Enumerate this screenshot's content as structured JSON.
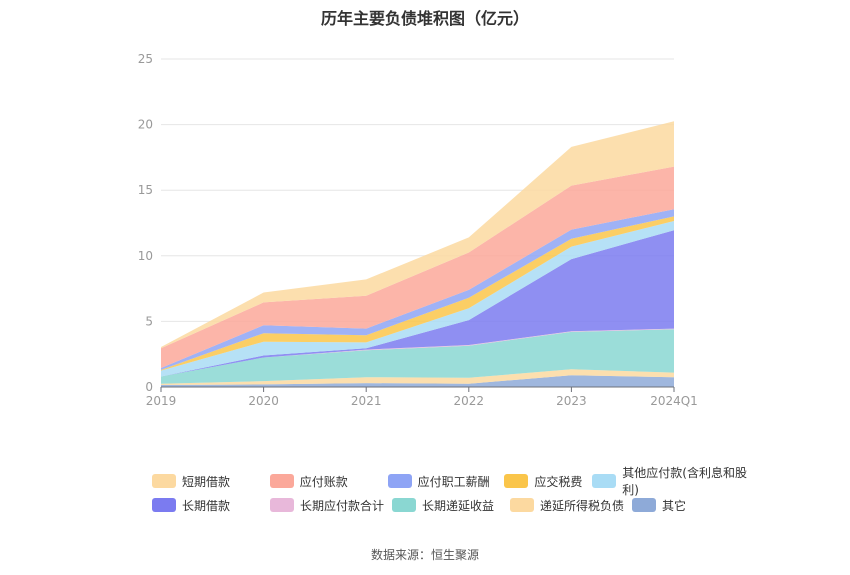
{
  "chart_data": {
    "type": "area",
    "stacked": true,
    "title": "历年主要负债堆积图（亿元）",
    "categories": [
      "2019",
      "2020",
      "2021",
      "2022",
      "2023",
      "2024Q1"
    ],
    "ylim": [
      0,
      25
    ],
    "yticks": [
      0,
      5,
      10,
      15,
      20,
      25
    ],
    "grid": true,
    "legend_position": "bottom",
    "series": [
      {
        "name": "其它",
        "color": "#8eaad8",
        "values": [
          0.15,
          0.2,
          0.3,
          0.25,
          0.9,
          0.75
        ]
      },
      {
        "name": "递延所得税负债",
        "color": "#fcd9a0",
        "values": [
          0.1,
          0.25,
          0.45,
          0.45,
          0.45,
          0.35
        ]
      },
      {
        "name": "长期递延收益",
        "color": "#8ad7d2",
        "values": [
          0.55,
          1.8,
          2.05,
          2.45,
          2.85,
          3.3
        ]
      },
      {
        "name": "长期应付款合计",
        "color": "#e8b8da",
        "values": [
          0.0,
          0.0,
          0.05,
          0.05,
          0.05,
          0.05
        ]
      },
      {
        "name": "长期借款",
        "color": "#7b7bf0",
        "values": [
          0.0,
          0.15,
          0.1,
          1.9,
          5.5,
          7.5
        ]
      },
      {
        "name": "其他应付款(含利息和股利)",
        "color": "#a9dcf5",
        "values": [
          0.45,
          1.05,
          0.45,
          0.9,
          0.95,
          0.7
        ]
      },
      {
        "name": "应交税费",
        "color": "#fac54a",
        "values": [
          0.05,
          0.65,
          0.55,
          0.8,
          0.6,
          0.35
        ]
      },
      {
        "name": "应付职工薪酬",
        "color": "#8ea4f5",
        "values": [
          0.15,
          0.6,
          0.5,
          0.6,
          0.7,
          0.55
        ]
      },
      {
        "name": "应付账款",
        "color": "#fba89a",
        "values": [
          1.5,
          1.75,
          2.5,
          2.85,
          3.35,
          3.25
        ]
      },
      {
        "name": "短期借款",
        "color": "#fcd9a0",
        "values": [
          0.1,
          0.75,
          1.25,
          1.15,
          2.95,
          3.45
        ]
      }
    ],
    "legend_rows": [
      [
        {
          "name": "短期借款",
          "color": "#fcd9a0"
        },
        {
          "name": "应付账款",
          "color": "#fba89a"
        },
        {
          "name": "应付职工薪酬",
          "color": "#8ea4f5"
        },
        {
          "name": "应交税费",
          "color": "#fac54a"
        },
        {
          "name": "其他应付款(含利息和股利)",
          "color": "#a9dcf5"
        }
      ],
      [
        {
          "name": "长期借款",
          "color": "#7b7bf0"
        },
        {
          "name": "长期应付款合计",
          "color": "#e8b8da"
        },
        {
          "name": "长期递延收益",
          "color": "#8ad7d2"
        },
        {
          "name": "递延所得税负债",
          "color": "#fcd9a0"
        },
        {
          "name": "其它",
          "color": "#8eaad8"
        }
      ]
    ]
  },
  "source": "数据来源：恒生聚源"
}
